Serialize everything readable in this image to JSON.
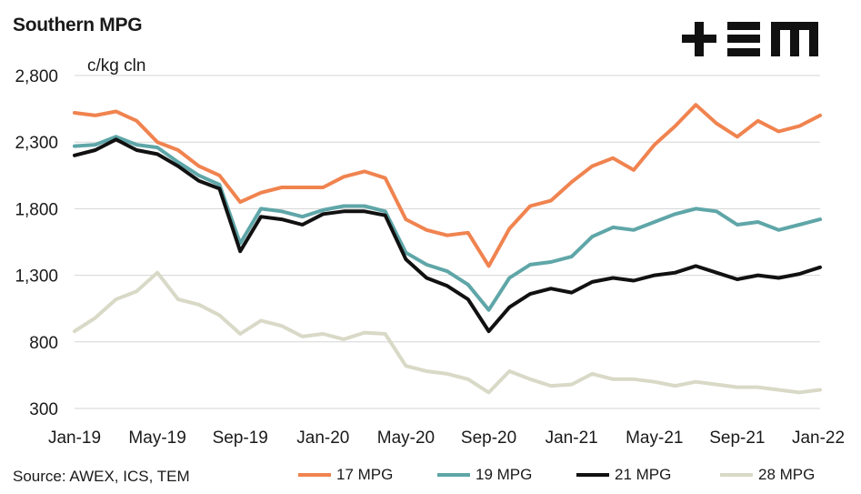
{
  "header": {
    "title": "Southern MPG",
    "logo_text": "TEM"
  },
  "footer": {
    "source": "Source: AWEX, ICS, TEM"
  },
  "chart_data": {
    "type": "line",
    "title": "Southern MPG",
    "ylabel": "c/kg cln",
    "xlabel": "",
    "ylim": [
      300,
      2800
    ],
    "yticks": [
      "2,800",
      "2,300",
      "1,800",
      "1,300",
      "800",
      "300"
    ],
    "ytick_values": [
      2800,
      2300,
      1800,
      1300,
      800,
      300
    ],
    "xticks": [
      "Jan-19",
      "May-19",
      "Sep-19",
      "Jan-20",
      "May-20",
      "Sep-20",
      "Jan-21",
      "May-21",
      "Sep-21",
      "Jan-22"
    ],
    "grid": true,
    "legend_position": "bottom",
    "x": [
      "Jan-19",
      "Feb-19",
      "Mar-19",
      "Apr-19",
      "May-19",
      "Jun-19",
      "Jul-19",
      "Aug-19",
      "Sep-19",
      "Oct-19",
      "Nov-19",
      "Dec-19",
      "Jan-20",
      "Feb-20",
      "Mar-20",
      "Apr-20",
      "May-20",
      "Jun-20",
      "Jul-20",
      "Aug-20",
      "Sep-20",
      "Oct-20",
      "Nov-20",
      "Dec-20",
      "Jan-21",
      "Feb-21",
      "Mar-21",
      "Apr-21",
      "May-21",
      "Jun-21",
      "Jul-21",
      "Aug-21",
      "Sep-21",
      "Oct-21",
      "Nov-21",
      "Dec-21",
      "Jan-22"
    ],
    "series": [
      {
        "name": "17 MPG",
        "color": "#f0834f",
        "values": [
          2520,
          2500,
          2530,
          2460,
          2300,
          2240,
          2120,
          2050,
          1850,
          1920,
          1960,
          1960,
          1960,
          2040,
          2080,
          2030,
          1720,
          1640,
          1600,
          1620,
          1370,
          1650,
          1820,
          1860,
          2000,
          2120,
          2180,
          2090,
          2280,
          2420,
          2580,
          2440,
          2340,
          2460,
          2380,
          2420,
          2500
        ]
      },
      {
        "name": "19 MPG",
        "color": "#5fa6a8",
        "values": [
          2270,
          2280,
          2340,
          2280,
          2260,
          2150,
          2050,
          1980,
          1540,
          1800,
          1780,
          1740,
          1790,
          1820,
          1820,
          1780,
          1470,
          1380,
          1330,
          1230,
          1040,
          1280,
          1380,
          1400,
          1440,
          1590,
          1660,
          1640,
          1700,
          1760,
          1800,
          1780,
          1680,
          1700,
          1640,
          1680,
          1720
        ]
      },
      {
        "name": "21 MPG",
        "color": "#111111",
        "values": [
          2200,
          2240,
          2320,
          2240,
          2210,
          2120,
          2010,
          1950,
          1480,
          1740,
          1720,
          1680,
          1760,
          1780,
          1780,
          1750,
          1420,
          1280,
          1220,
          1120,
          880,
          1060,
          1160,
          1200,
          1170,
          1250,
          1280,
          1260,
          1300,
          1320,
          1370,
          1320,
          1270,
          1300,
          1280,
          1310,
          1360
        ]
      },
      {
        "name": "28 MPG",
        "color": "#d9d9c7",
        "values": [
          880,
          980,
          1120,
          1180,
          1320,
          1120,
          1080,
          1000,
          860,
          960,
          920,
          840,
          860,
          820,
          870,
          860,
          620,
          580,
          560,
          520,
          420,
          580,
          520,
          470,
          480,
          560,
          520,
          520,
          500,
          470,
          500,
          480,
          460,
          460,
          440,
          420,
          440
        ]
      }
    ]
  }
}
